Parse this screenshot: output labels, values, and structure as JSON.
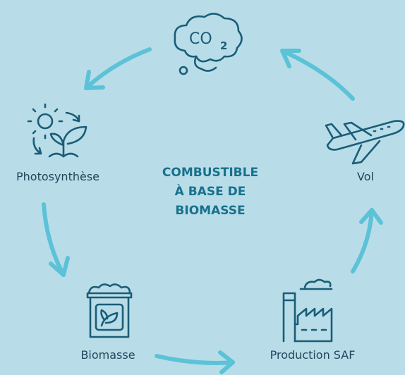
{
  "center_title": {
    "lines": [
      "COMBUSTIBLE",
      "À BASE DE",
      "BIOMASSE"
    ]
  },
  "co2_icon": {
    "text": "CO",
    "subscript": "2"
  },
  "nodes": [
    {
      "label": "Photosynthèse"
    },
    {
      "label": "Biomasse"
    },
    {
      "label": "Production SAF"
    },
    {
      "label": "Vol"
    }
  ]
}
